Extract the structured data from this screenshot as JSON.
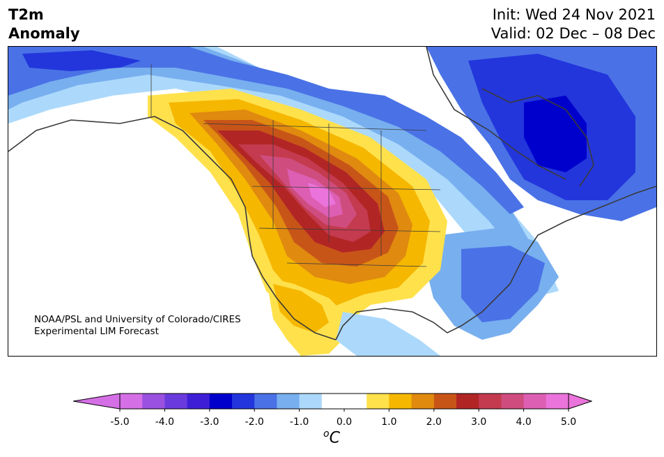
{
  "title": {
    "left_line1": "T2m",
    "left_line2": "Anomaly",
    "right_line1": "Init: Wed 24 Nov 2021",
    "right_line2": "Valid: 02 Dec – 08 Dec"
  },
  "credit": {
    "line1": "NOAA/PSL and University of Colorado/CIRES",
    "line2": "Experimental LIM Forecast"
  },
  "colorbar": {
    "colors": [
      "#d56fe6",
      "#9a51e0",
      "#6a3bdc",
      "#3e1fd6",
      "#0000cc",
      "#2336dc",
      "#4a72e6",
      "#78afef",
      "#acd9fb",
      "#ffffff",
      "#ffffff",
      "#ffe14c",
      "#f5b700",
      "#e08a10",
      "#c85518",
      "#b22525",
      "#c43a4e",
      "#cf4d7e",
      "#dd5fb3",
      "#eb74dc"
    ],
    "labels": [
      "-5.0",
      "-4.0",
      "-3.0",
      "-2.0",
      "-1.0",
      "0.0",
      "1.0",
      "2.0",
      "3.0",
      "4.0",
      "5.0"
    ],
    "unit_base": "C",
    "unit_sup": "o"
  }
}
